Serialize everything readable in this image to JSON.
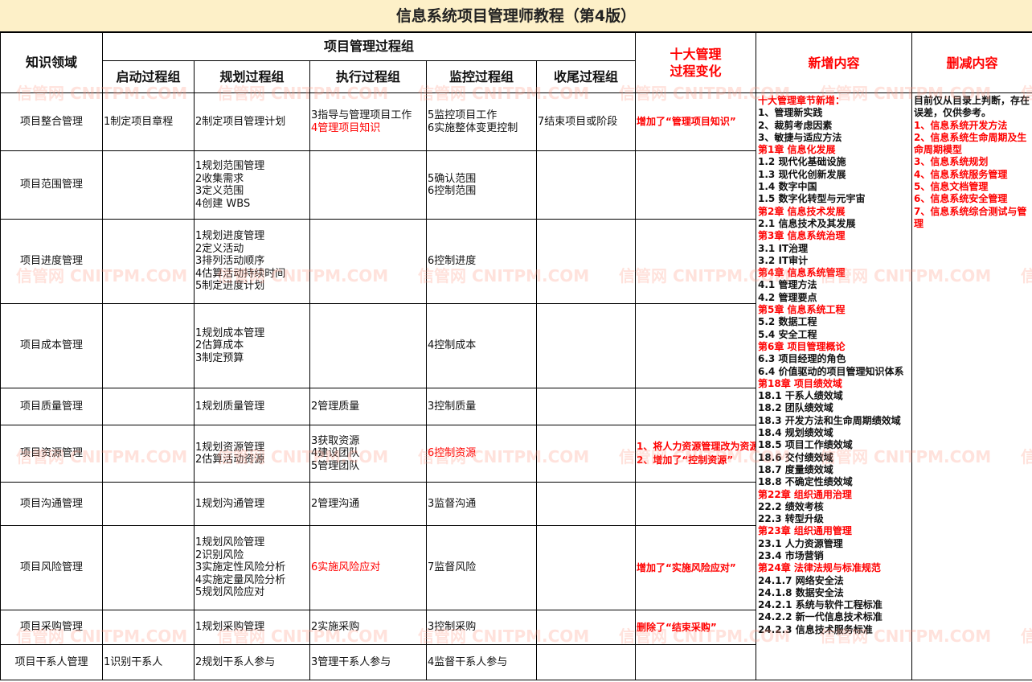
{
  "title": "信息系统项目管理师教程（第4版）",
  "watermark": "信管网 CNITPM.COM",
  "colors": {
    "header_bg": "#fdf0c8",
    "highlight": "#ff0000"
  },
  "headers": {
    "area": "知识领域",
    "group": "项目管理过程组",
    "initiating": "启动过程组",
    "planning": "规划过程组",
    "executing": "执行过程组",
    "monitoring": "监控过程组",
    "closing": "收尾过程组",
    "change_l1": "十大管理",
    "change_l2": "过程变化",
    "added": "新增内容",
    "removed": "删减内容"
  },
  "rows": [
    {
      "area": "项目整合管理",
      "init": [
        {
          "t": "1制定项目章程"
        }
      ],
      "plan": [
        {
          "t": "2制定项目管理计划"
        }
      ],
      "exec": [
        {
          "t": "3指导与管理项目工作"
        },
        {
          "t": "4管理项目知识",
          "red": true
        }
      ],
      "mon": [
        {
          "t": "5监控项目工作"
        },
        {
          "t": "6实施整体变更控制"
        }
      ],
      "close": [
        {
          "t": "7结束项目或阶段"
        }
      ],
      "change": [
        {
          "t": "增加了“管理项目知识”"
        }
      ]
    },
    {
      "area": "项目范围管理",
      "init": [],
      "plan": [
        {
          "t": "1规划范围管理"
        },
        {
          "t": "2收集需求"
        },
        {
          "t": "3定义范围"
        },
        {
          "t": "4创建 WBS"
        }
      ],
      "exec": [],
      "mon": [
        {
          "t": "5确认范围"
        },
        {
          "t": "6控制范围"
        }
      ],
      "close": [],
      "change": []
    },
    {
      "area": "项目进度管理",
      "init": [],
      "plan": [
        {
          "t": "1规划进度管理"
        },
        {
          "t": "2定义活动"
        },
        {
          "t": "3排列活动顺序"
        },
        {
          "t": "4估算活动持续时间"
        },
        {
          "t": "5制定进度计划"
        }
      ],
      "exec": [],
      "mon": [
        {
          "t": "6控制进度"
        }
      ],
      "close": [],
      "change": []
    },
    {
      "area": "项目成本管理",
      "init": [],
      "plan": [
        {
          "t": "1规划成本管理"
        },
        {
          "t": "2估算成本"
        },
        {
          "t": "3制定预算"
        }
      ],
      "exec": [],
      "mon": [
        {
          "t": "4控制成本"
        }
      ],
      "close": [],
      "change": []
    },
    {
      "area": "项目质量管理",
      "init": [],
      "plan": [
        {
          "t": "1规划质量管理"
        }
      ],
      "exec": [
        {
          "t": "2管理质量"
        }
      ],
      "mon": [
        {
          "t": "3控制质量"
        }
      ],
      "close": [],
      "change": []
    },
    {
      "area": "项目资源管理",
      "init": [],
      "plan": [
        {
          "t": "1规划资源管理"
        },
        {
          "t": "2估算活动资源"
        }
      ],
      "exec": [
        {
          "t": "3获取资源"
        },
        {
          "t": "4建设团队"
        },
        {
          "t": "5管理团队"
        }
      ],
      "mon": [
        {
          "t": "6控制资源",
          "red": true
        }
      ],
      "close": [],
      "change": [
        {
          "t": "1、将人力资源管理改为资源管理"
        },
        {
          "t": "2、增加了“控制资源”"
        }
      ]
    },
    {
      "area": "项目沟通管理",
      "init": [],
      "plan": [
        {
          "t": "1规划沟通管理"
        }
      ],
      "exec": [
        {
          "t": "2管理沟通"
        }
      ],
      "mon": [
        {
          "t": "3监督沟通"
        }
      ],
      "close": [],
      "change": []
    },
    {
      "area": "项目风险管理",
      "init": [],
      "plan": [
        {
          "t": "1规划风险管理"
        },
        {
          "t": "2识别风险"
        },
        {
          "t": "3实施定性风险分析"
        },
        {
          "t": "4实施定量风险分析"
        },
        {
          "t": "5规划风险应对"
        }
      ],
      "exec": [
        {
          "t": "6实施风险应对",
          "red": true
        }
      ],
      "mon": [
        {
          "t": "7监督风险"
        }
      ],
      "close": [],
      "change": [
        {
          "t": "增加了“实施风险应对”"
        }
      ]
    },
    {
      "area": "项目采购管理",
      "init": [],
      "plan": [
        {
          "t": "1规划采购管理"
        }
      ],
      "exec": [
        {
          "t": "2实施采购"
        }
      ],
      "mon": [
        {
          "t": "3控制采购"
        }
      ],
      "close": [],
      "change": [
        {
          "t": "删除了“结束采购”"
        }
      ]
    },
    {
      "area": "项目干系人管理",
      "init": [
        {
          "t": "1识别干系人"
        }
      ],
      "plan": [
        {
          "t": "2规划干系人参与"
        }
      ],
      "exec": [
        {
          "t": "3管理干系人参与"
        }
      ],
      "mon": [
        {
          "t": "4监督干系人参与"
        }
      ],
      "close": [],
      "change": []
    }
  ],
  "added": [
    {
      "t": "十大管理章节新增：",
      "red": true
    },
    {
      "t": "1、管理新实践"
    },
    {
      "t": "2、裁剪考虑因素"
    },
    {
      "t": "3、敏捷与适应方法"
    },
    {
      "t": " "
    },
    {
      "t": "第1章  信息化发展",
      "red": true
    },
    {
      "t": "1.2 现代化基础设施"
    },
    {
      "t": "1.3 现代化创新发展"
    },
    {
      "t": "1.4 数字中国"
    },
    {
      "t": "1.5 数字化转型与元宇宙"
    },
    {
      "t": "第2章  信息技术发展",
      "red": true
    },
    {
      "t": "2.1 信息技术及其发展"
    },
    {
      "t": "第3章  信息系统治理",
      "red": true
    },
    {
      "t": "3.1 IT治理"
    },
    {
      "t": "3.2 IT审计"
    },
    {
      "t": "第4章  信息系统管理",
      "red": true
    },
    {
      "t": "4.1 管理方法"
    },
    {
      "t": "4.2 管理要点"
    },
    {
      "t": "第5章  信息系统工程",
      "red": true
    },
    {
      "t": "5.2 数据工程"
    },
    {
      "t": "5.4 安全工程"
    },
    {
      "t": "第6章  项目管理概论",
      "red": true
    },
    {
      "t": "6.3 项目经理的角色"
    },
    {
      "t": "6.4 价值驱动的项目管理知识体系"
    },
    {
      "t": "第18章  项目绩效域",
      "red": true
    },
    {
      "t": "18.1 干系人绩效域"
    },
    {
      "t": "18.2 团队绩效域"
    },
    {
      "t": "18.3 开发方法和生命周期绩效域"
    },
    {
      "t": "18.4 规划绩效域"
    },
    {
      "t": "18.5 项目工作绩效域"
    },
    {
      "t": "18.6 交付绩效域"
    },
    {
      "t": "18.7 度量绩效域"
    },
    {
      "t": "18.8 不确定性绩效域"
    },
    {
      "t": "第22章  组织通用治理",
      "red": true
    },
    {
      "t": "22.2 绩效考核"
    },
    {
      "t": "22.3 转型升级"
    },
    {
      "t": "第23章  组织通用管理",
      "red": true
    },
    {
      "t": "23.1 人力资源管理"
    },
    {
      "t": "23.4 市场营销"
    },
    {
      "t": "第24章  法律法规与标准规范",
      "red": true
    },
    {
      "t": "24.1.7 网络安全法"
    },
    {
      "t": "24.1.8 数据安全法"
    },
    {
      "t": "24.2.1 系统与软件工程标准"
    },
    {
      "t": "24.2.2 新一代信息技术标准"
    },
    {
      "t": "24.2.3 信息技术服务标准"
    }
  ],
  "removed": [
    {
      "t": "目前仅从目录上判断，存在误差，仅供参考。"
    },
    {
      "t": " "
    },
    {
      "t": "1、信息系统开发方法",
      "red": true
    },
    {
      "t": "2、信息系统生命周期及生命周期模型",
      "red": true
    },
    {
      "t": "3、信息系统规划",
      "red": true
    },
    {
      "t": "4、信息系统服务管理",
      "red": true
    },
    {
      "t": "5、信息文档管理",
      "red": true
    },
    {
      "t": "6、信息系统安全管理",
      "red": true
    },
    {
      "t": "7、信息系统综合测试与管理",
      "red": true
    }
  ]
}
